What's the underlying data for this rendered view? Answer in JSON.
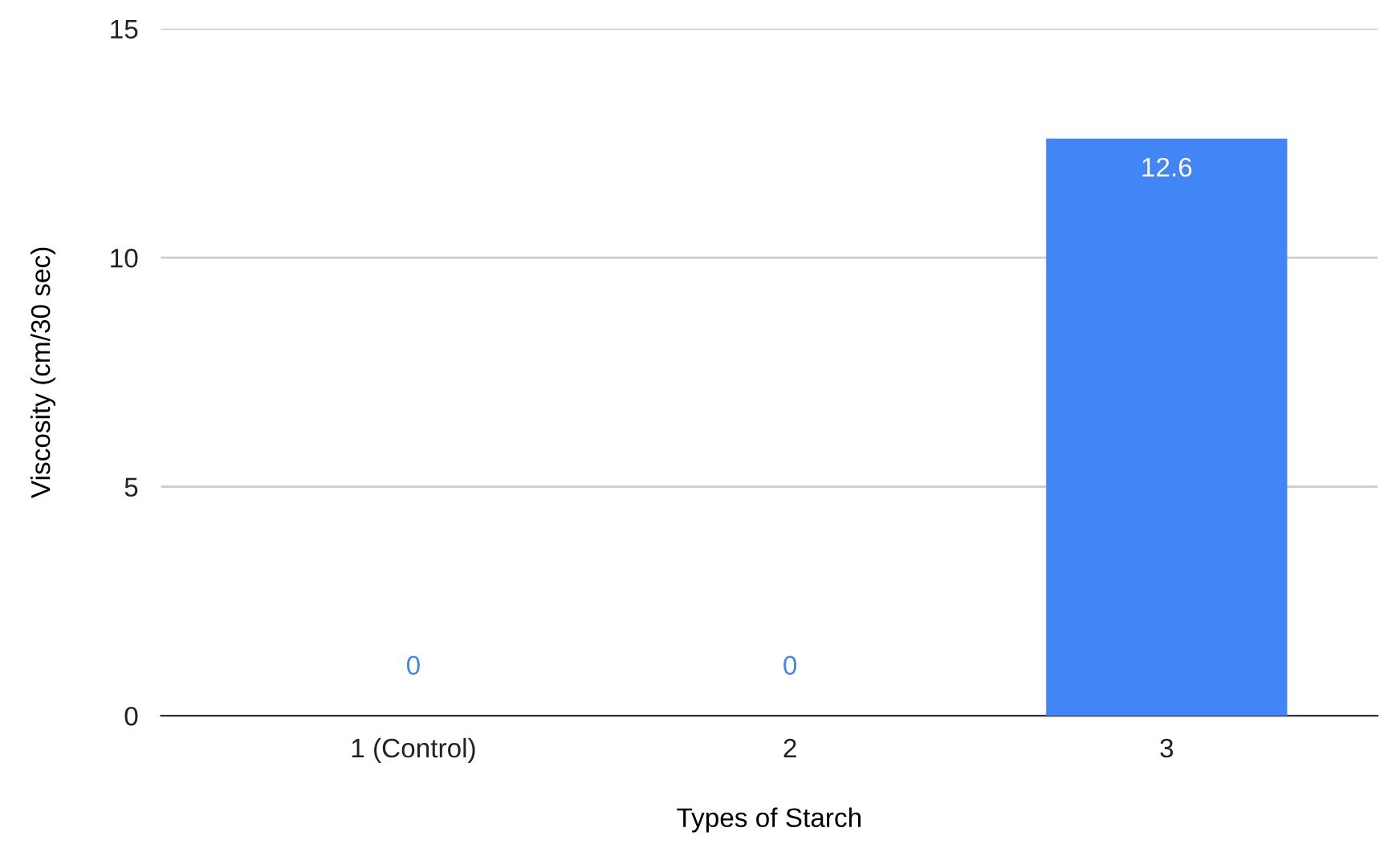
{
  "chart_data": {
    "type": "bar",
    "xlabel": "Types of Starch",
    "ylabel": "Viscosity (cm/30 sec)",
    "categories": [
      "1 (Control)",
      "2",
      "3"
    ],
    "values": [
      0,
      0,
      12.6
    ],
    "color": "#4285f4",
    "ylim": [
      0,
      15
    ],
    "yticks": [
      0,
      5,
      10,
      15
    ],
    "grid": "y",
    "data_labels": true
  }
}
